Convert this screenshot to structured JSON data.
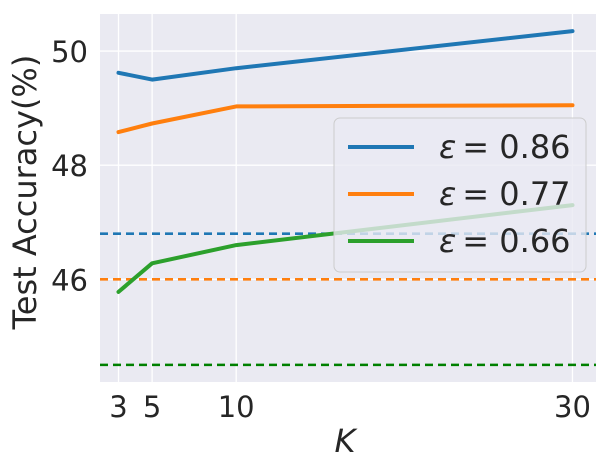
{
  "chart_data": {
    "type": "line",
    "xlabel": "K",
    "ylabel": "Test Accuracy(%)",
    "x": [
      3,
      5,
      10,
      30
    ],
    "xticks": [
      3,
      5,
      10,
      30
    ],
    "xtick_labels": [
      "3",
      "5",
      "10",
      "30"
    ],
    "yticks": [
      46,
      48,
      50
    ],
    "ytick_labels": [
      "46",
      "48",
      "50"
    ],
    "xlim": [
      1.9,
      31.4
    ],
    "ylim": [
      44.2,
      50.65
    ],
    "grid": true,
    "legend_position": "center-right",
    "series": [
      {
        "name": "ε = 0.86",
        "legend_symbol": "ε",
        "legend_value": "= 0.86",
        "values": [
          49.62,
          49.5,
          49.7,
          50.35
        ],
        "color": "#1f77b4",
        "baseline": 46.8
      },
      {
        "name": "ε = 0.77",
        "legend_symbol": "ε",
        "legend_value": "= 0.77",
        "values": [
          48.58,
          48.73,
          49.03,
          49.05
        ],
        "color": "#ff7f0e",
        "baseline": 46.0
      },
      {
        "name": "ε = 0.66",
        "legend_symbol": "ε",
        "legend_value": "= 0.66",
        "values": [
          45.78,
          46.28,
          46.6,
          47.3
        ],
        "color": "#2ca02c",
        "baseline": 44.5
      }
    ],
    "baseline_colors": [
      "#1f77b4",
      "#ff7f0e",
      "#008000"
    ],
    "style": {
      "plot_background": "#eaeaf2",
      "grid_color": "#ffffff"
    }
  }
}
